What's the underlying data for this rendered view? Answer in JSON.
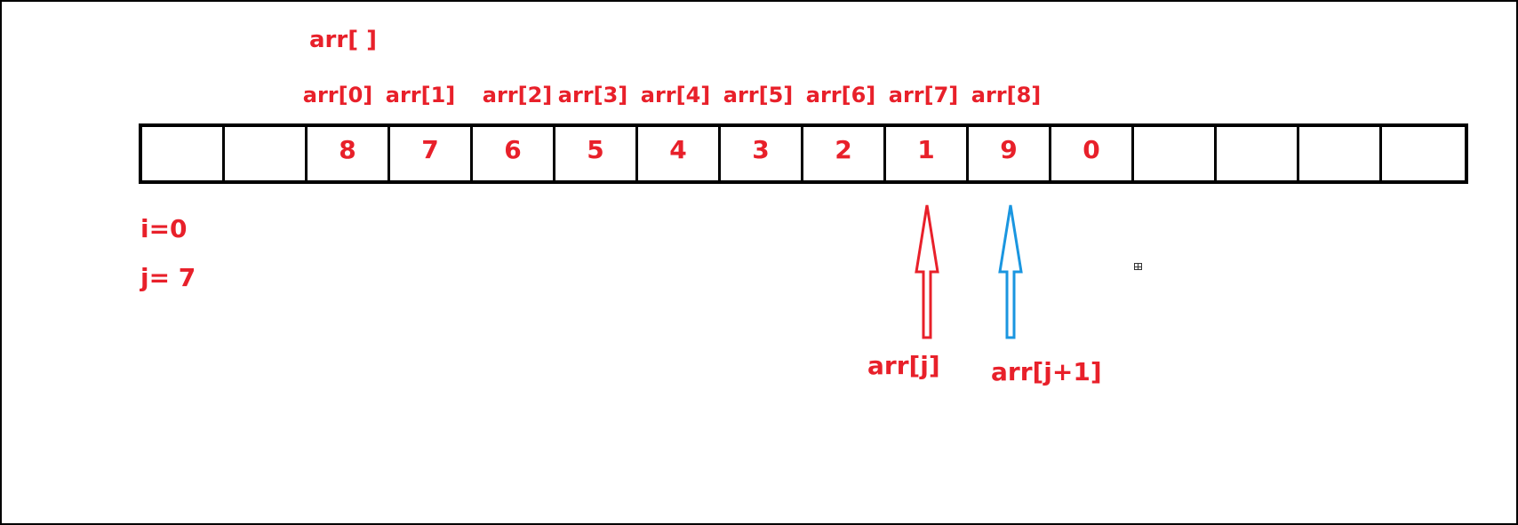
{
  "title": "arr[ ]",
  "index_labels": [
    "arr[0]",
    "arr[1]",
    "arr[2]",
    "arr[3]",
    "arr[4]",
    "arr[5]",
    "arr[6]",
    "arr[7]",
    "arr[8]"
  ],
  "cells": [
    "",
    "",
    "8",
    "7",
    "6",
    "5",
    "4",
    "3",
    "2",
    "1",
    "9",
    "0",
    "",
    "",
    "",
    ""
  ],
  "vars": {
    "i": "i=0",
    "j": "j= 7"
  },
  "pointers": {
    "arr_j": "arr[j]",
    "arr_j1": "arr[j+1]"
  },
  "colors": {
    "text": "#e8202a",
    "arr_j_arrow": "#e8202a",
    "arr_j1_arrow": "#1a96e0",
    "grid": "#000000"
  }
}
